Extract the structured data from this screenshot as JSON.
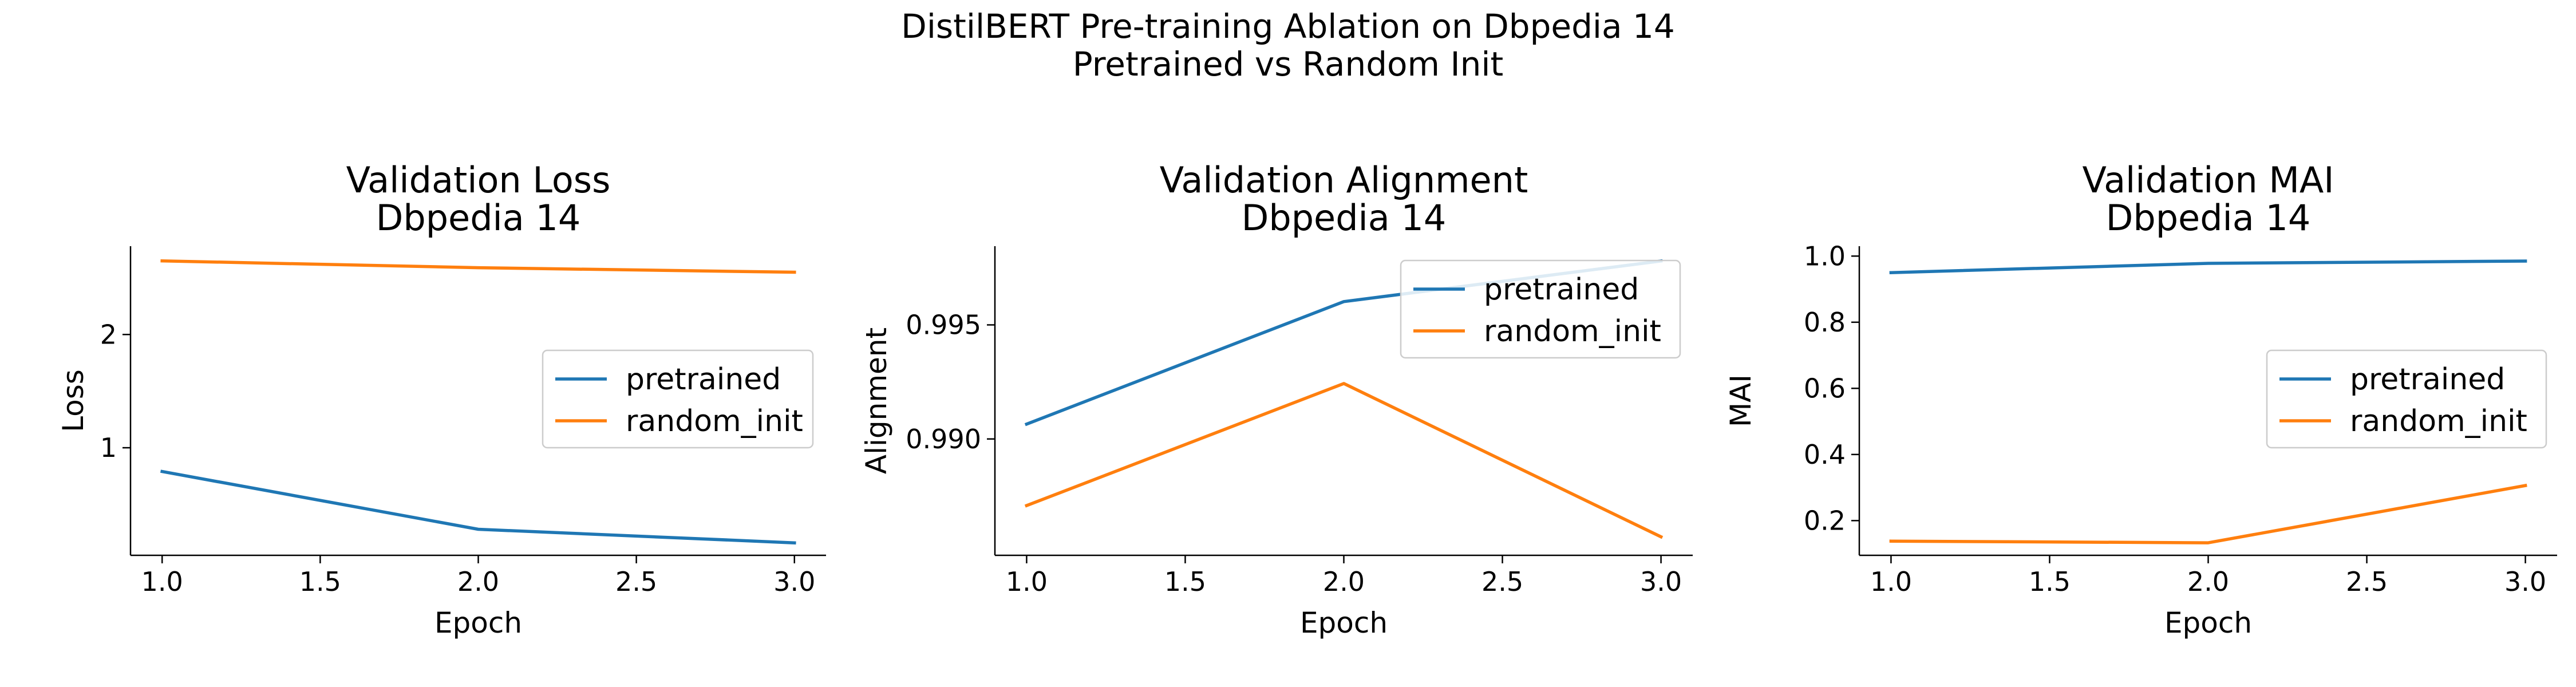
{
  "figure": {
    "title_line1": "DistilBERT Pre-training Ablation on Dbpedia 14",
    "title_line2": "Pretrained vs Random Init"
  },
  "colors": {
    "pretrained": "#1f77b4",
    "random_init": "#ff7f0e"
  },
  "chart_data": [
    {
      "type": "line",
      "title_line1": "Validation Loss",
      "title_line2": "Dbpedia 14",
      "xlabel": "Epoch",
      "ylabel": "Loss",
      "x": [
        1.0,
        2.0,
        3.0
      ],
      "xlim": [
        0.9,
        3.1
      ],
      "ylim": [
        0.05,
        2.78
      ],
      "xticks": [
        1.0,
        1.5,
        2.0,
        2.5,
        3.0
      ],
      "xtick_labels": [
        "1.0",
        "1.5",
        "2.0",
        "2.5",
        "3.0"
      ],
      "yticks": [
        1,
        2
      ],
      "ytick_labels": [
        "1",
        "2"
      ],
      "legend": "center-right",
      "series": [
        {
          "name": "pretrained",
          "values": [
            0.79,
            0.28,
            0.16
          ]
        },
        {
          "name": "random_init",
          "values": [
            2.65,
            2.59,
            2.55
          ]
        }
      ]
    },
    {
      "type": "line",
      "title_line1": "Validation Alignment",
      "title_line2": "Dbpedia 14",
      "xlabel": "Epoch",
      "ylabel": "Alignment",
      "x": [
        1.0,
        2.0,
        3.0
      ],
      "xlim": [
        0.9,
        3.1
      ],
      "ylim": [
        0.9849,
        0.99845
      ],
      "xticks": [
        1.0,
        1.5,
        2.0,
        2.5,
        3.0
      ],
      "xtick_labels": [
        "1.0",
        "1.5",
        "2.0",
        "2.5",
        "3.0"
      ],
      "yticks": [
        0.99,
        0.995
      ],
      "ytick_labels": [
        "0.990",
        "0.995"
      ],
      "legend": "upper-right",
      "series": [
        {
          "name": "pretrained",
          "values": [
            0.99065,
            0.99602,
            0.9978
          ]
        },
        {
          "name": "random_init",
          "values": [
            0.98708,
            0.99243,
            0.98571
          ]
        }
      ]
    },
    {
      "type": "line",
      "title_line1": "Validation MAI",
      "title_line2": "Dbpedia 14",
      "xlabel": "Epoch",
      "ylabel": "MAI",
      "x": [
        1.0,
        2.0,
        3.0
      ],
      "xlim": [
        0.9,
        3.1
      ],
      "ylim": [
        0.095,
        1.03
      ],
      "xticks": [
        1.0,
        1.5,
        2.0,
        2.5,
        3.0
      ],
      "xtick_labels": [
        "1.0",
        "1.5",
        "2.0",
        "2.5",
        "3.0"
      ],
      "yticks": [
        0.2,
        0.4,
        0.6,
        0.8,
        1.0
      ],
      "ytick_labels": [
        "0.2",
        "0.4",
        "0.6",
        "0.8",
        "1.0"
      ],
      "legend": "center-right",
      "series": [
        {
          "name": "pretrained",
          "values": [
            0.95,
            0.978,
            0.985
          ]
        },
        {
          "name": "random_init",
          "values": [
            0.138,
            0.133,
            0.306
          ]
        }
      ]
    }
  ]
}
